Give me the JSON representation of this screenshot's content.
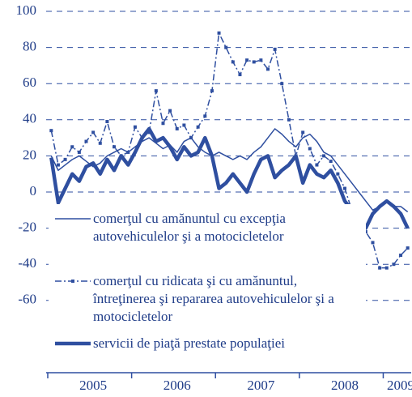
{
  "chart_data": {
    "type": "line",
    "categories": [
      null,
      null,
      null,
      null,
      null,
      null,
      "2005",
      null,
      null,
      null,
      null,
      null,
      null,
      null,
      null,
      null,
      null,
      null,
      "2006",
      null,
      null,
      null,
      null,
      null,
      null,
      null,
      null,
      null,
      null,
      null,
      "2007",
      null,
      null,
      null,
      null,
      null,
      null,
      null,
      null,
      null,
      null,
      null,
      "2008",
      null,
      null,
      null,
      null,
      null,
      null,
      null,
      "2009",
      null
    ],
    "ylim": [
      -100,
      100
    ],
    "yticks": [
      100,
      80,
      60,
      40,
      20,
      0,
      -20,
      -40,
      -60
    ],
    "grid": true,
    "series": [
      {
        "name": "comerţul cu amănuntul cu excepţia autovehiculelor şi a motocicletelor",
        "color": "#2f4fa0",
        "style": "solid",
        "values": [
          20,
          12,
          15,
          18,
          20,
          17,
          14,
          16,
          20,
          22,
          24,
          22,
          25,
          28,
          30,
          27,
          24,
          26,
          22,
          28,
          30,
          25,
          22,
          20,
          22,
          20,
          18,
          20,
          18,
          22,
          25,
          30,
          35,
          32,
          28,
          25,
          30,
          32,
          28,
          22,
          20,
          15,
          10,
          5,
          0,
          -5,
          -10,
          -8,
          -5,
          -8,
          -8,
          -11
        ]
      },
      {
        "name": "comerţul cu ridicata şi cu amănuntul, întreţinerea şi repararea autovehiculelor şi a motocicletelor",
        "color": "#2f4fa0",
        "style": "dashdot",
        "values": [
          34,
          15,
          18,
          25,
          22,
          28,
          33,
          27,
          39,
          25,
          20,
          22,
          36,
          30,
          33,
          56,
          38,
          45,
          35,
          37,
          30,
          36,
          42,
          56,
          88,
          80,
          72,
          65,
          73,
          72,
          73,
          68,
          79,
          60,
          40,
          20,
          33,
          24,
          15,
          20,
          17,
          10,
          2,
          -10,
          -18,
          -22,
          -28,
          -42,
          -42,
          -40,
          -35,
          -31
        ]
      },
      {
        "name": "servicii de piaţă prestate populaţiei",
        "color": "#2f4fa0",
        "style": "thick",
        "values": [
          19,
          -6,
          2,
          10,
          6,
          14,
          16,
          10,
          18,
          12,
          20,
          15,
          22,
          30,
          35,
          28,
          30,
          25,
          18,
          25,
          20,
          22,
          30,
          20,
          2,
          5,
          10,
          5,
          0,
          10,
          18,
          20,
          8,
          12,
          15,
          20,
          5,
          15,
          10,
          8,
          12,
          5,
          -5,
          -10,
          -15,
          -20,
          -12,
          -8,
          -5,
          -8,
          -12,
          -20
        ]
      }
    ]
  }
}
